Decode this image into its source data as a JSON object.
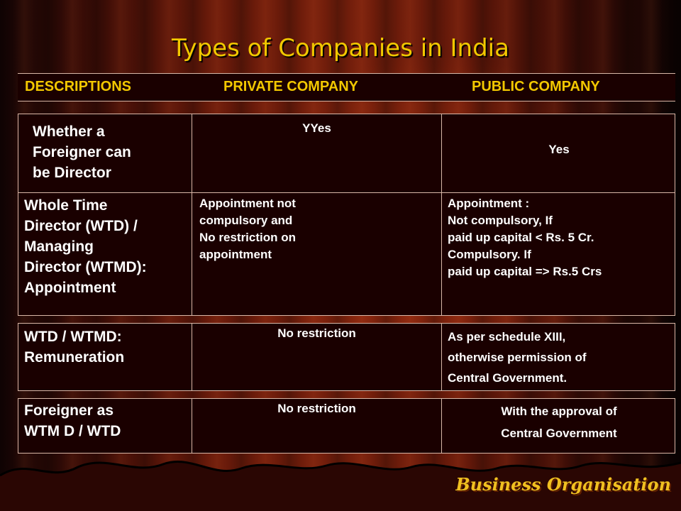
{
  "title": "Types of Companies in India",
  "headers": [
    "DESCRIPTIONS",
    "PRIVATE COMPANY",
    "PUBLIC COMPANY"
  ],
  "rows": [
    {
      "description": [
        "Whether a",
        "Foreigner can",
        "be Director"
      ],
      "private": [
        "YYes"
      ],
      "public": [
        "Yes"
      ]
    },
    {
      "description": [
        "Whole Time",
        "Director (WTD) /",
        "Managing",
        "Director (WTMD):",
        "Appointment"
      ],
      "private": [
        "Appointment not",
        "compulsory and",
        "No restriction on",
        "appointment"
      ],
      "public": [
        "Appointment :",
        "Not compulsory, If",
        "paid up capital < Rs. 5 Cr.",
        "Compulsory. If",
        "paid up capital => Rs.5 Crs"
      ]
    },
    {
      "description": [
        "WTD / WTMD:",
        "Remuneration"
      ],
      "private": [
        "No restriction"
      ],
      "public": [
        "As per schedule XIII,",
        "otherwise permission of",
        "Central Government."
      ]
    },
    {
      "description": [
        "Foreigner as",
        "WTM D / WTD"
      ],
      "private": [
        "No restriction"
      ],
      "public": [
        "With the approval of",
        "Central Government"
      ]
    }
  ],
  "footer": {
    "brand": "Business Organisation"
  },
  "colors": {
    "title": "#f2c800",
    "header": "#f2c800",
    "cell_text": "#ffffff",
    "border": "#d8b8a8"
  }
}
